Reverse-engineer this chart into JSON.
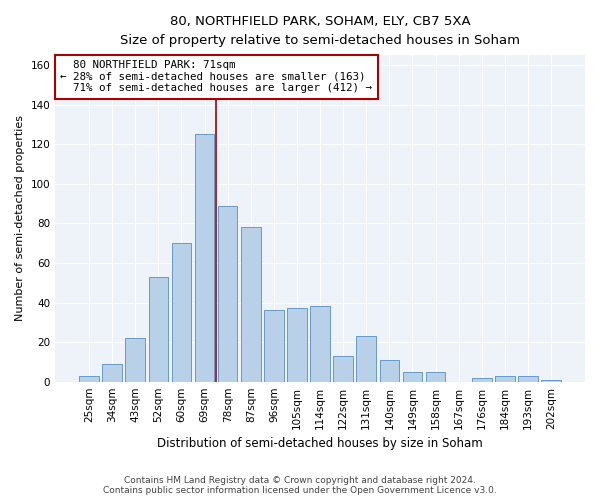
{
  "title": "80, NORTHFIELD PARK, SOHAM, ELY, CB7 5XA",
  "subtitle": "Size of property relative to semi-detached houses in Soham",
  "xlabel": "Distribution of semi-detached houses by size in Soham",
  "ylabel": "Number of semi-detached properties",
  "categories": [
    "25sqm",
    "34sqm",
    "43sqm",
    "52sqm",
    "60sqm",
    "69sqm",
    "78sqm",
    "87sqm",
    "96sqm",
    "105sqm",
    "114sqm",
    "122sqm",
    "131sqm",
    "140sqm",
    "149sqm",
    "158sqm",
    "167sqm",
    "176sqm",
    "184sqm",
    "193sqm",
    "202sqm"
  ],
  "values": [
    3,
    9,
    22,
    53,
    70,
    125,
    89,
    78,
    36,
    37,
    38,
    13,
    23,
    11,
    5,
    5,
    0,
    2,
    3,
    3,
    1
  ],
  "bar_color": "#b8d0e8",
  "bar_edge_color": "#6699cc",
  "property_label": "80 NORTHFIELD PARK: 71sqm",
  "pct_smaller": 28,
  "pct_larger": 71,
  "n_smaller": 163,
  "n_larger": 412,
  "vline_color": "#aa0000",
  "annotation_box_edge_color": "#aa0000",
  "ylim": [
    0,
    165
  ],
  "yticks": [
    0,
    20,
    40,
    60,
    80,
    100,
    120,
    140,
    160
  ],
  "background_color": "#eef2f9",
  "footer_line1": "Contains HM Land Registry data © Crown copyright and database right 2024.",
  "footer_line2": "Contains public sector information licensed under the Open Government Licence v3.0."
}
